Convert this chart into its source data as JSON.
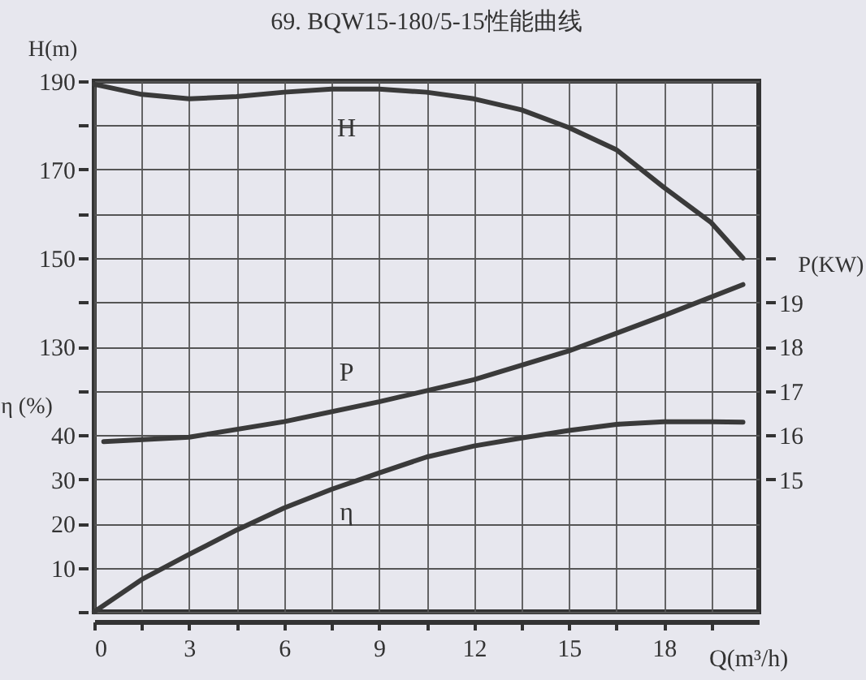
{
  "chart_data": {
    "type": "line",
    "title": "69. BQW15-180/5-15性能曲线",
    "xlabel": "Q(m³/h)",
    "ylabel": "H(m)",
    "y2label": "P(KW)",
    "y3label": "η (%)",
    "xlim": [
      0,
      21
    ],
    "xticks": [
      0,
      {
        "value": 1.5,
        "label": null
      },
      3,
      {
        "value": 4.5,
        "label": null
      },
      6,
      {
        "value": 7.5,
        "label": null
      },
      9,
      {
        "value": 10.5,
        "label": null
      },
      12,
      {
        "value": 13.5,
        "label": null
      },
      15,
      {
        "value": 16.5,
        "label": null
      },
      18,
      {
        "value": 19.5,
        "label": null
      }
    ],
    "ylim": [
      70,
      190
    ],
    "yticks": [
      130,
      {
        "value": 140,
        "label": null
      },
      150,
      {
        "value": 160,
        "label": null
      },
      170,
      {
        "value": 180,
        "label": null
      },
      190
    ],
    "y2lim": [
      12,
      24
    ],
    "y2ticks": [
      15,
      16,
      17,
      18,
      19,
      {
        "value": 20,
        "label": null
      }
    ],
    "y3lim": [
      0,
      120
    ],
    "y3ticks": [
      {
        "value": 0,
        "label": null
      },
      10,
      20,
      30,
      40,
      {
        "value": 50,
        "label": null
      }
    ],
    "grid": true,
    "line_style": "solid",
    "series": [
      {
        "name": "H",
        "color": "#3a3a3a",
        "axis": "y",
        "x": [
          0,
          1.5,
          3,
          4.5,
          6,
          7.5,
          9,
          10.5,
          12,
          13.5,
          15,
          16.5,
          18,
          19.5,
          20.5
        ],
        "values": [
          189.3,
          187,
          186,
          186.5,
          187.5,
          188.2,
          188.2,
          187.5,
          186,
          183.5,
          179.5,
          174.5,
          166,
          158,
          150
        ]
      },
      {
        "name": "P",
        "color": "#3a3a3a",
        "axis": "y2",
        "x": [
          0.3,
          3,
          6,
          9,
          12,
          15,
          18,
          20.5
        ],
        "values": [
          15.85,
          15.95,
          16.3,
          16.75,
          17.25,
          17.9,
          18.7,
          19.4
        ]
      },
      {
        "name": "η",
        "color": "#3a3a3a",
        "axis": "y3",
        "x": [
          0,
          1.5,
          3,
          4.5,
          6,
          7.5,
          9,
          10.5,
          12,
          13.5,
          15,
          16.5,
          18,
          19.5,
          20.5
        ],
        "values": [
          0,
          7.3,
          13,
          18.5,
          23.5,
          27.7,
          31.4,
          35,
          37.5,
          39.3,
          41,
          42.4,
          43,
          43,
          42.9
        ]
      }
    ]
  }
}
